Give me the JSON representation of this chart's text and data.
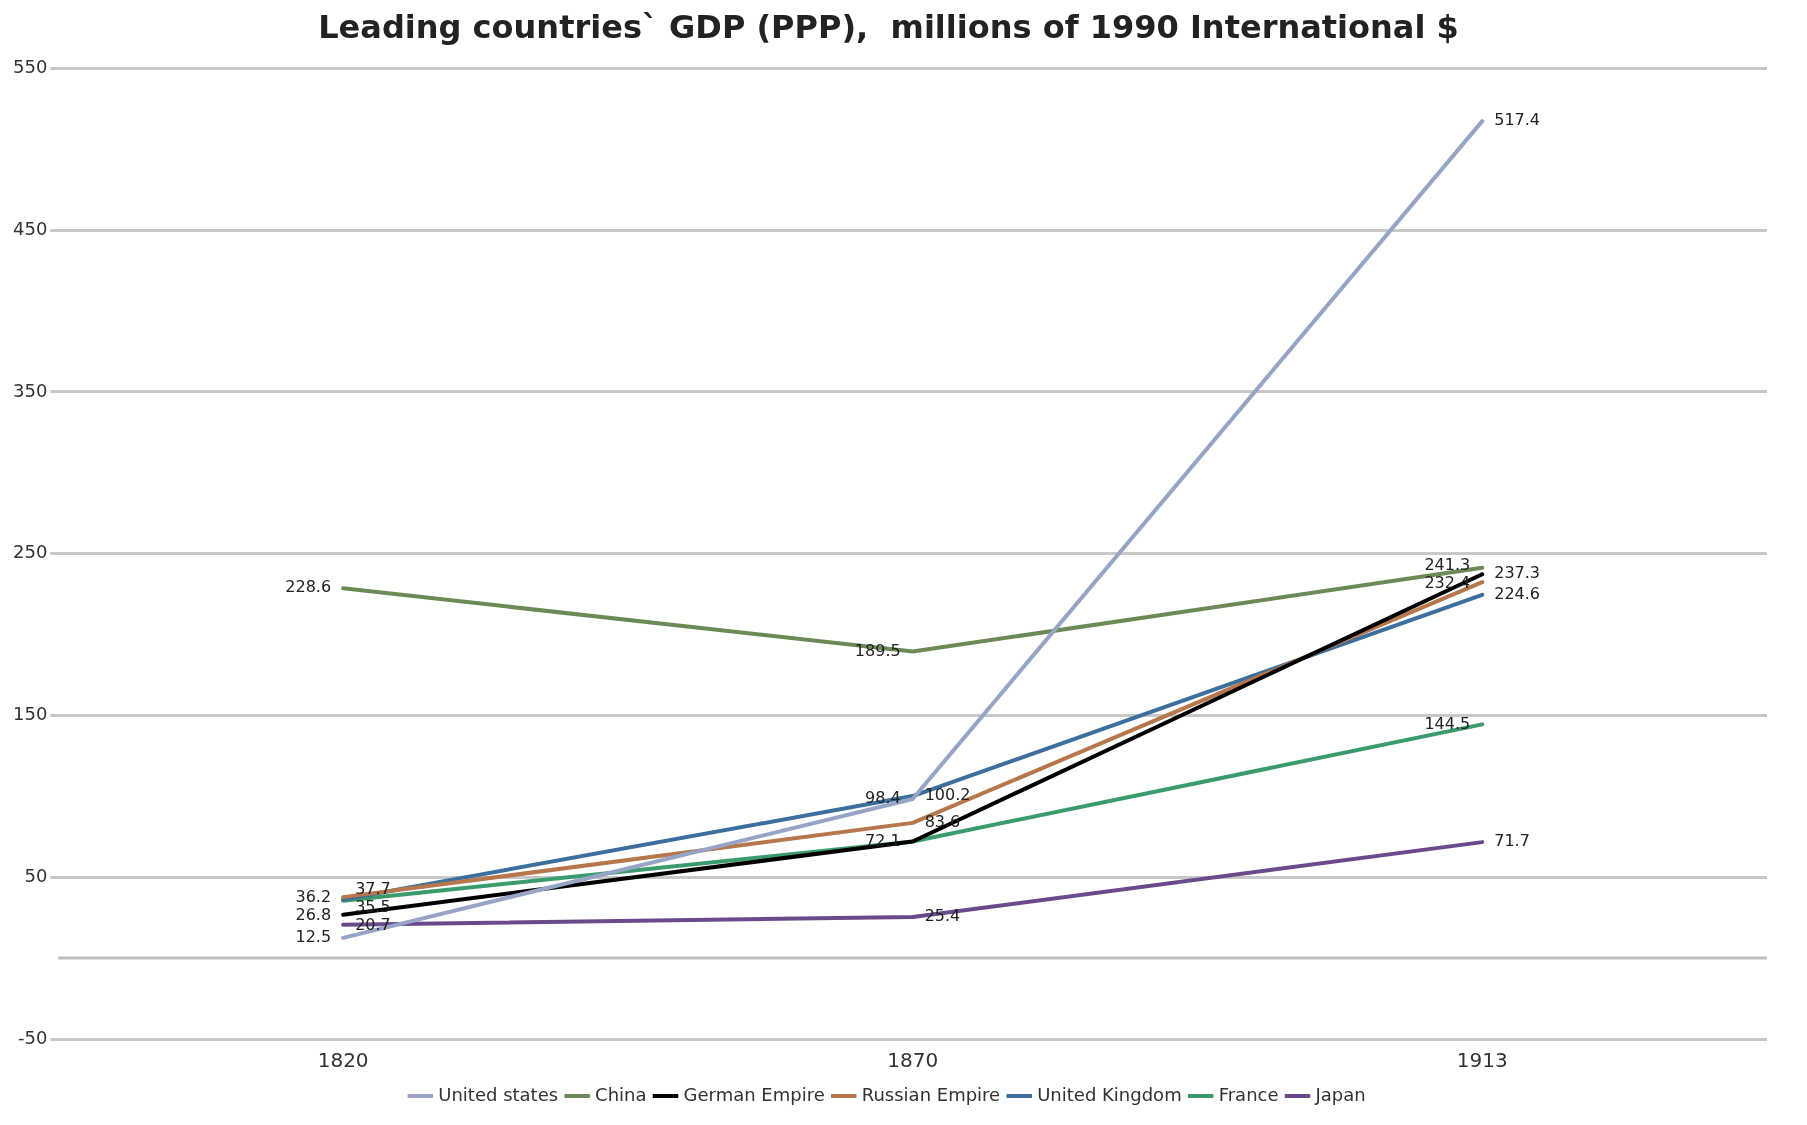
{
  "chart_data": {
    "type": "line",
    "title": "Leading countries` GDP (PPP),  millions of 1990 International $",
    "categories": [
      "1820",
      "1870",
      "1913"
    ],
    "series": [
      {
        "name": "United states",
        "color": "#96a5c6",
        "values": [
          12.5,
          98.4,
          517.4
        ],
        "value_labels": [
          "12.5",
          "98.4",
          "517.4"
        ]
      },
      {
        "name": "China",
        "color": "#6b8a55",
        "values": [
          228.6,
          189.5,
          241.3
        ],
        "value_labels": [
          "228.6",
          "189.5",
          "241.3"
        ]
      },
      {
        "name": "German Empire",
        "color": "#000000",
        "values": [
          26.8,
          72.1,
          237.3
        ],
        "value_labels": [
          "26.8",
          "72.1",
          "237.3"
        ]
      },
      {
        "name": "Russian Empire",
        "color": "#b5774b",
        "values": [
          37.7,
          83.6,
          232.4
        ],
        "value_labels": [
          "37.7",
          "83.6",
          "232.4"
        ]
      },
      {
        "name": "United Kingdom",
        "color": "#3c6e9e",
        "values": [
          36.2,
          100.2,
          224.6
        ],
        "value_labels": [
          "36.2",
          "100.2",
          "224.6"
        ]
      },
      {
        "name": "France",
        "color": "#3a9c6c",
        "values": [
          35.5,
          72.1,
          144.5
        ],
        "value_labels": [
          "35.5",
          null,
          "144.5"
        ]
      },
      {
        "name": "Japan",
        "color": "#6b4a8c",
        "values": [
          20.7,
          25.4,
          71.7
        ],
        "value_labels": [
          "20.7",
          "25.4",
          "71.7"
        ]
      }
    ],
    "ylim": [
      -50,
      550
    ],
    "yticks": [
      -50,
      50,
      150,
      250,
      350,
      450,
      550
    ],
    "grid": "y",
    "legend": "bottom",
    "marker": "none",
    "line_style": "solid",
    "ref_lines": [
      {
        "axis": "y",
        "value": 0,
        "color": "#bfbfbf"
      }
    ]
  }
}
